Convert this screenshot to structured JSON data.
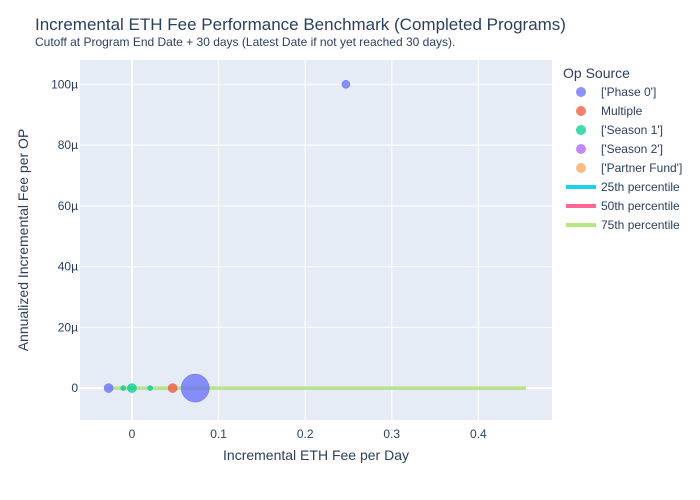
{
  "chart_data": {
    "type": "scatter",
    "title": "Incremental ETH Fee Performance Benchmark (Completed Programs)",
    "subtitle": "Cutoff at Program End Date + 30 days (Latest Date if not yet reached 30 days).",
    "xlabel": "Incremental ETH Fee per Day",
    "ylabel": "Annualized Incremental Fee per OP",
    "xlim": [
      -0.06,
      0.485
    ],
    "ylim": [
      -1.05e-05,
      0.000108
    ],
    "x_ticks": [
      {
        "value": 0,
        "label": "0"
      },
      {
        "value": 0.1,
        "label": "0.1"
      },
      {
        "value": 0.2,
        "label": "0.2"
      },
      {
        "value": 0.3,
        "label": "0.3"
      },
      {
        "value": 0.4,
        "label": "0.4"
      }
    ],
    "y_ticks": [
      {
        "value": 0,
        "label": "0"
      },
      {
        "value": 2e-05,
        "label": "20µ"
      },
      {
        "value": 4e-05,
        "label": "40µ"
      },
      {
        "value": 6e-05,
        "label": "60µ"
      },
      {
        "value": 8e-05,
        "label": "80µ"
      },
      {
        "value": 0.0001,
        "label": "100µ"
      }
    ],
    "grid": true,
    "legend_position": "right",
    "legend_title": "Op Source",
    "series": [
      {
        "name": "['Phase 0']",
        "color": "#636efa",
        "points": [
          {
            "x": 0.247,
            "y": 0.0001,
            "size": 6
          },
          {
            "x": -0.027,
            "y": 0,
            "size": 7
          },
          {
            "x": 0.073,
            "y": 0,
            "size": 26
          }
        ]
      },
      {
        "name": "Multiple",
        "color": "#ef553b",
        "points": [
          {
            "x": 0.047,
            "y": 0,
            "size": 7
          }
        ]
      },
      {
        "name": "['Season 1']",
        "color": "#00cc96",
        "points": [
          {
            "x": 0.0,
            "y": 0,
            "size": 7
          },
          {
            "x": -0.01,
            "y": 0,
            "size": 3
          },
          {
            "x": 0.021,
            "y": 0,
            "size": 3
          }
        ]
      },
      {
        "name": "['Season 2']",
        "color": "#ab63fa",
        "points": []
      },
      {
        "name": "['Partner Fund']",
        "color": "#ffa15a",
        "points": []
      }
    ],
    "lines": [
      {
        "name": "25th percentile",
        "color": "#19d3f3",
        "y": 0,
        "x0": -0.03,
        "x1": 0.455
      },
      {
        "name": "50th percentile",
        "color": "#ff6692",
        "y": 0,
        "x0": -0.03,
        "x1": 0.455
      },
      {
        "name": "75th percentile",
        "color": "#b6e880",
        "y": 0,
        "x0": -0.03,
        "x1": 0.455
      }
    ]
  }
}
